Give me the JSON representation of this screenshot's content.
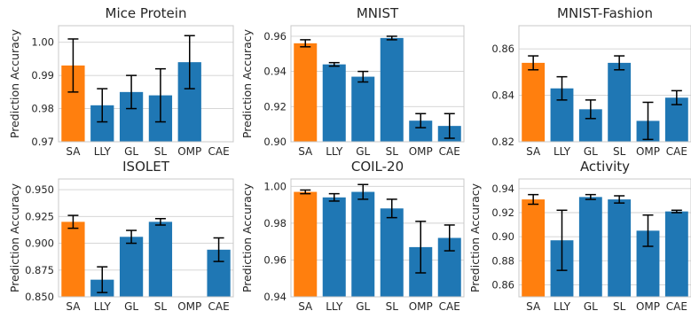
{
  "colors": {
    "highlight": "#ff7f0e",
    "bar": "#1f77b4",
    "grid": "#d0d0d0",
    "axes": "#c8c8c8",
    "error": "#000000"
  },
  "chart_data": [
    {
      "type": "bar",
      "title": "Mice Protein",
      "ylabel": "Prediction Accuracy",
      "categories": [
        "SA",
        "LLY",
        "GL",
        "SL",
        "OMP",
        "CAE"
      ],
      "values": [
        0.993,
        0.981,
        0.985,
        0.984,
        0.994,
        null
      ],
      "errors": [
        0.008,
        0.005,
        0.005,
        0.008,
        0.008,
        null
      ],
      "ylim": [
        0.97,
        1.005
      ],
      "yticks": [
        "0.97",
        "0.98",
        "0.99",
        "1.00"
      ],
      "grid": true
    },
    {
      "type": "bar",
      "title": "MNIST",
      "ylabel": "Prediction Accuracy",
      "categories": [
        "SA",
        "LLY",
        "GL",
        "SL",
        "OMP",
        "CAE"
      ],
      "values": [
        0.956,
        0.944,
        0.937,
        0.959,
        0.912,
        0.909
      ],
      "errors": [
        0.002,
        0.001,
        0.003,
        0.001,
        0.004,
        0.007
      ],
      "ylim": [
        0.9,
        0.966
      ],
      "yticks": [
        "0.90",
        "0.92",
        "0.94",
        "0.96"
      ],
      "grid": true
    },
    {
      "type": "bar",
      "title": "MNIST-Fashion",
      "ylabel": "",
      "categories": [
        "SA",
        "LLY",
        "GL",
        "SL",
        "OMP",
        "CAE"
      ],
      "values": [
        0.854,
        0.843,
        0.834,
        0.854,
        0.829,
        0.839
      ],
      "errors": [
        0.003,
        0.005,
        0.004,
        0.003,
        0.008,
        0.003
      ],
      "ylim": [
        0.82,
        0.87
      ],
      "yticks": [
        "0.82",
        "0.84",
        "0.86"
      ],
      "grid": true
    },
    {
      "type": "bar",
      "title": "ISOLET",
      "ylabel": "Prediction Accuracy",
      "categories": [
        "SA",
        "LLY",
        "GL",
        "SL",
        "OMP",
        "CAE"
      ],
      "values": [
        0.92,
        0.866,
        0.906,
        0.92,
        null,
        0.894
      ],
      "errors": [
        0.006,
        0.012,
        0.006,
        0.003,
        null,
        0.011
      ],
      "ylim": [
        0.85,
        0.96
      ],
      "yticks": [
        "0.850",
        "0.875",
        "0.900",
        "0.925",
        "0.950"
      ],
      "grid": true
    },
    {
      "type": "bar",
      "title": "COIL-20",
      "ylabel": "Prediction Accuracy",
      "categories": [
        "SA",
        "LLY",
        "GL",
        "SL",
        "OMP",
        "CAE"
      ],
      "values": [
        0.997,
        0.994,
        0.997,
        0.988,
        0.967,
        0.972
      ],
      "errors": [
        0.001,
        0.002,
        0.004,
        0.005,
        0.014,
        0.007
      ],
      "ylim": [
        0.94,
        1.004
      ],
      "yticks": [
        "0.94",
        "0.96",
        "0.98",
        "1.00"
      ],
      "grid": true
    },
    {
      "type": "bar",
      "title": "Activity",
      "ylabel": "Prediction Accuracy",
      "categories": [
        "SA",
        "LLY",
        "GL",
        "SL",
        "OMP",
        "CAE"
      ],
      "values": [
        0.931,
        0.897,
        0.933,
        0.931,
        0.905,
        0.921
      ],
      "errors": [
        0.004,
        0.025,
        0.002,
        0.003,
        0.013,
        0.001
      ],
      "ylim": [
        0.85,
        0.948
      ],
      "yticks": [
        "0.86",
        "0.88",
        "0.90",
        "0.92",
        "0.94"
      ],
      "grid": true
    }
  ]
}
